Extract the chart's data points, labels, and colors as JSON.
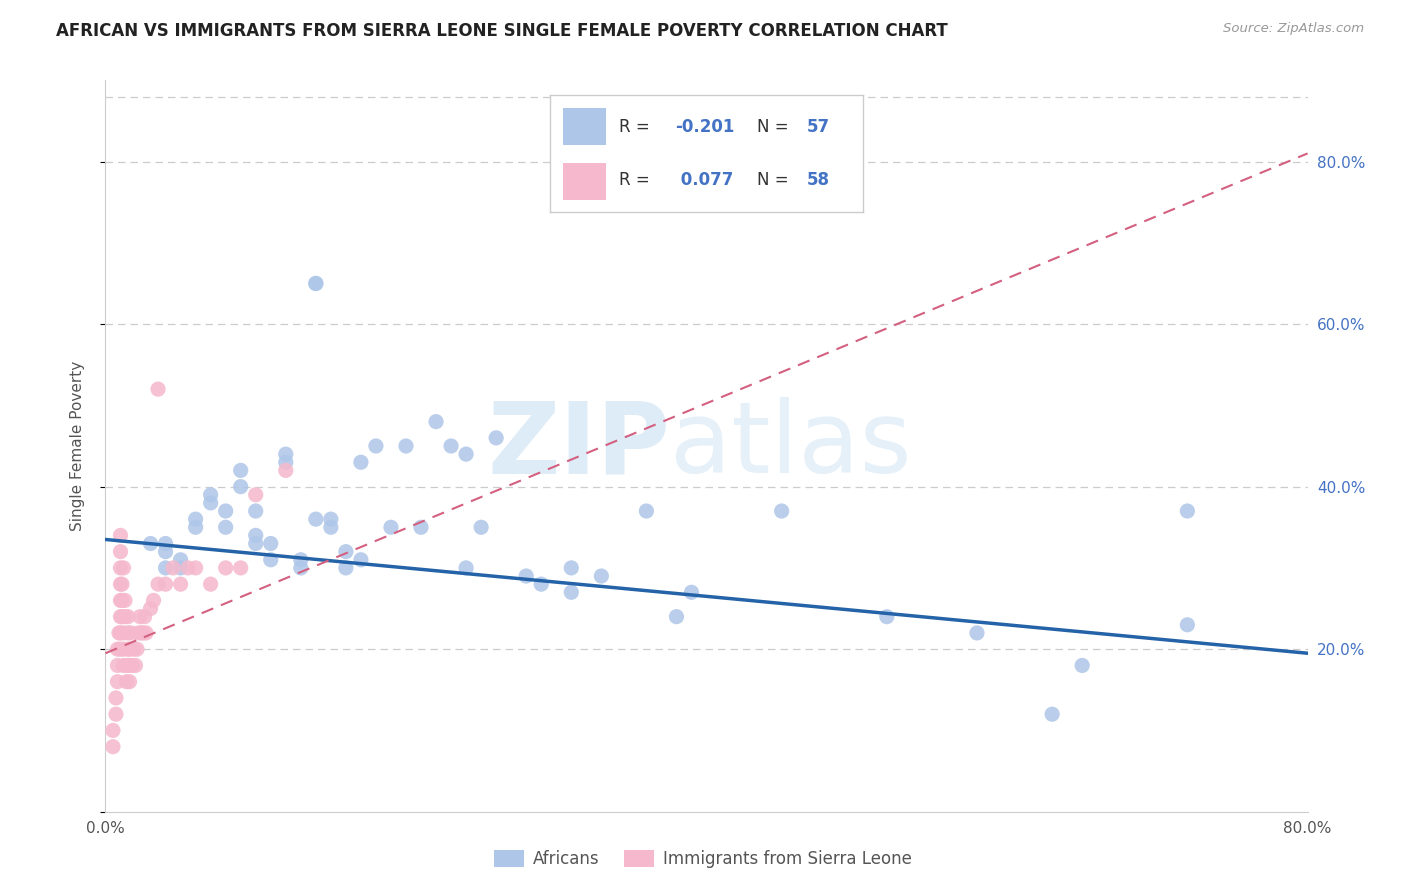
{
  "title": "AFRICAN VS IMMIGRANTS FROM SIERRA LEONE SINGLE FEMALE POVERTY CORRELATION CHART",
  "source": "Source: ZipAtlas.com",
  "ylabel": "Single Female Poverty",
  "xlim": [
    0.0,
    0.8
  ],
  "ylim": [
    0.0,
    0.9
  ],
  "watermark_zip": "ZIP",
  "watermark_atlas": "atlas",
  "legend_label_blue": "Africans",
  "legend_label_pink": "Immigrants from Sierra Leone",
  "blue_color": "#aec6e8",
  "blue_line_color": "#2563a8",
  "pink_color": "#f5b8cc",
  "pink_line_color": "#d46080",
  "africans_x": [
    0.03,
    0.04,
    0.04,
    0.04,
    0.05,
    0.05,
    0.06,
    0.06,
    0.07,
    0.07,
    0.08,
    0.08,
    0.09,
    0.09,
    0.1,
    0.1,
    0.1,
    0.11,
    0.11,
    0.12,
    0.12,
    0.13,
    0.13,
    0.14,
    0.14,
    0.15,
    0.15,
    0.16,
    0.16,
    0.17,
    0.17,
    0.18,
    0.19,
    0.2,
    0.21,
    0.22,
    0.23,
    0.24,
    0.24,
    0.25,
    0.26,
    0.28,
    0.29,
    0.31,
    0.31,
    0.33,
    0.36,
    0.38,
    0.39,
    0.45,
    0.52,
    0.58,
    0.63,
    0.65,
    0.72,
    0.72,
    0.14
  ],
  "africans_y": [
    0.33,
    0.33,
    0.3,
    0.32,
    0.31,
    0.3,
    0.35,
    0.36,
    0.38,
    0.39,
    0.35,
    0.37,
    0.4,
    0.42,
    0.37,
    0.33,
    0.34,
    0.33,
    0.31,
    0.43,
    0.44,
    0.3,
    0.31,
    0.65,
    0.36,
    0.36,
    0.35,
    0.32,
    0.3,
    0.31,
    0.43,
    0.45,
    0.35,
    0.45,
    0.35,
    0.48,
    0.45,
    0.3,
    0.44,
    0.35,
    0.46,
    0.29,
    0.28,
    0.3,
    0.27,
    0.29,
    0.37,
    0.24,
    0.27,
    0.37,
    0.24,
    0.22,
    0.12,
    0.18,
    0.23,
    0.37,
    0.65
  ],
  "sierra_leone_x": [
    0.005,
    0.005,
    0.007,
    0.007,
    0.008,
    0.008,
    0.008,
    0.009,
    0.01,
    0.01,
    0.01,
    0.01,
    0.01,
    0.01,
    0.01,
    0.01,
    0.011,
    0.011,
    0.011,
    0.012,
    0.012,
    0.012,
    0.012,
    0.013,
    0.013,
    0.014,
    0.014,
    0.015,
    0.015,
    0.015,
    0.016,
    0.016,
    0.016,
    0.017,
    0.018,
    0.019,
    0.02,
    0.021,
    0.022,
    0.023,
    0.024,
    0.025,
    0.026,
    0.027,
    0.03,
    0.032,
    0.035,
    0.04,
    0.045,
    0.05,
    0.055,
    0.06,
    0.07,
    0.08,
    0.09,
    0.1,
    0.12,
    0.035
  ],
  "sierra_leone_y": [
    0.08,
    0.1,
    0.12,
    0.14,
    0.16,
    0.18,
    0.2,
    0.22,
    0.24,
    0.26,
    0.28,
    0.3,
    0.32,
    0.34,
    0.2,
    0.22,
    0.24,
    0.26,
    0.28,
    0.3,
    0.18,
    0.2,
    0.22,
    0.24,
    0.26,
    0.16,
    0.18,
    0.2,
    0.22,
    0.24,
    0.16,
    0.18,
    0.2,
    0.22,
    0.18,
    0.2,
    0.18,
    0.2,
    0.22,
    0.24,
    0.22,
    0.22,
    0.24,
    0.22,
    0.25,
    0.26,
    0.28,
    0.28,
    0.3,
    0.28,
    0.3,
    0.3,
    0.28,
    0.3,
    0.3,
    0.39,
    0.42,
    0.52
  ],
  "blue_trend_x0": 0.0,
  "blue_trend_y0": 0.335,
  "blue_trend_x1": 0.8,
  "blue_trend_y1": 0.195,
  "pink_trend_x0": 0.0,
  "pink_trend_y0": 0.195,
  "pink_trend_x1": 0.8,
  "pink_trend_y1": 0.81
}
